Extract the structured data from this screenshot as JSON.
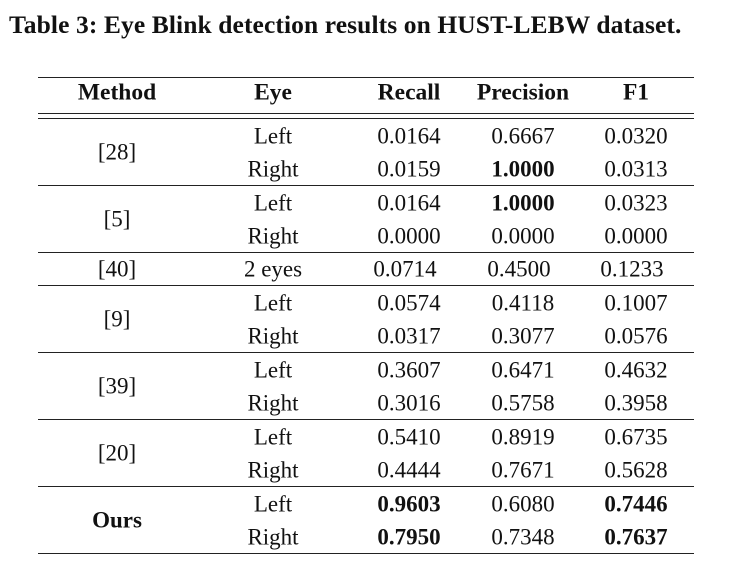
{
  "caption": "Table 3: Eye Blink detection results on HUST-LEBW dataset.",
  "headers": {
    "method": "Method",
    "eye": "Eye",
    "recall": "Recall",
    "precision": "Precision",
    "f1": "F1"
  },
  "groups": [
    {
      "method": "[28]",
      "rows": [
        {
          "eye": "Left",
          "recall": "0.0164",
          "precision": "0.6667",
          "f1": "0.0320",
          "bold": []
        },
        {
          "eye": "Right",
          "recall": "0.0159",
          "precision": "1.0000",
          "f1": "0.0313",
          "bold": [
            "precision"
          ]
        }
      ]
    },
    {
      "method": "[5]",
      "rows": [
        {
          "eye": "Left",
          "recall": "0.0164",
          "precision": "1.0000",
          "f1": "0.0323",
          "bold": [
            "precision"
          ]
        },
        {
          "eye": "Right",
          "recall": "0.0000",
          "precision": "0.0000",
          "f1": "0.0000",
          "bold": []
        }
      ]
    },
    {
      "method": "[40]",
      "rows": [
        {
          "eye": "2 eyes",
          "recall": "0.0714",
          "precision": "0.4500",
          "f1": "0.1233",
          "bold": []
        }
      ]
    },
    {
      "method": "[9]",
      "rows": [
        {
          "eye": "Left",
          "recall": "0.0574",
          "precision": "0.4118",
          "f1": "0.1007",
          "bold": []
        },
        {
          "eye": "Right",
          "recall": "0.0317",
          "precision": "0.3077",
          "f1": "0.0576",
          "bold": []
        }
      ]
    },
    {
      "method": "[39]",
      "rows": [
        {
          "eye": "Left",
          "recall": "0.3607",
          "precision": "0.6471",
          "f1": "0.4632",
          "bold": []
        },
        {
          "eye": "Right",
          "recall": "0.3016",
          "precision": "0.5758",
          "f1": "0.3958",
          "bold": []
        }
      ]
    },
    {
      "method": "[20]",
      "rows": [
        {
          "eye": "Left",
          "recall": "0.5410",
          "precision": "0.8919",
          "f1": "0.6735",
          "bold": []
        },
        {
          "eye": "Right",
          "recall": "0.4444",
          "precision": "0.7671",
          "f1": "0.5628",
          "bold": []
        }
      ]
    },
    {
      "method": "Ours",
      "method_bold": true,
      "rows": [
        {
          "eye": "Left",
          "recall": "0.9603",
          "precision": "0.6080",
          "f1": "0.7446",
          "bold": [
            "recall",
            "f1"
          ]
        },
        {
          "eye": "Right",
          "recall": "0.7950",
          "precision": "0.7348",
          "f1": "0.7637",
          "bold": [
            "recall",
            "f1"
          ]
        }
      ]
    }
  ]
}
